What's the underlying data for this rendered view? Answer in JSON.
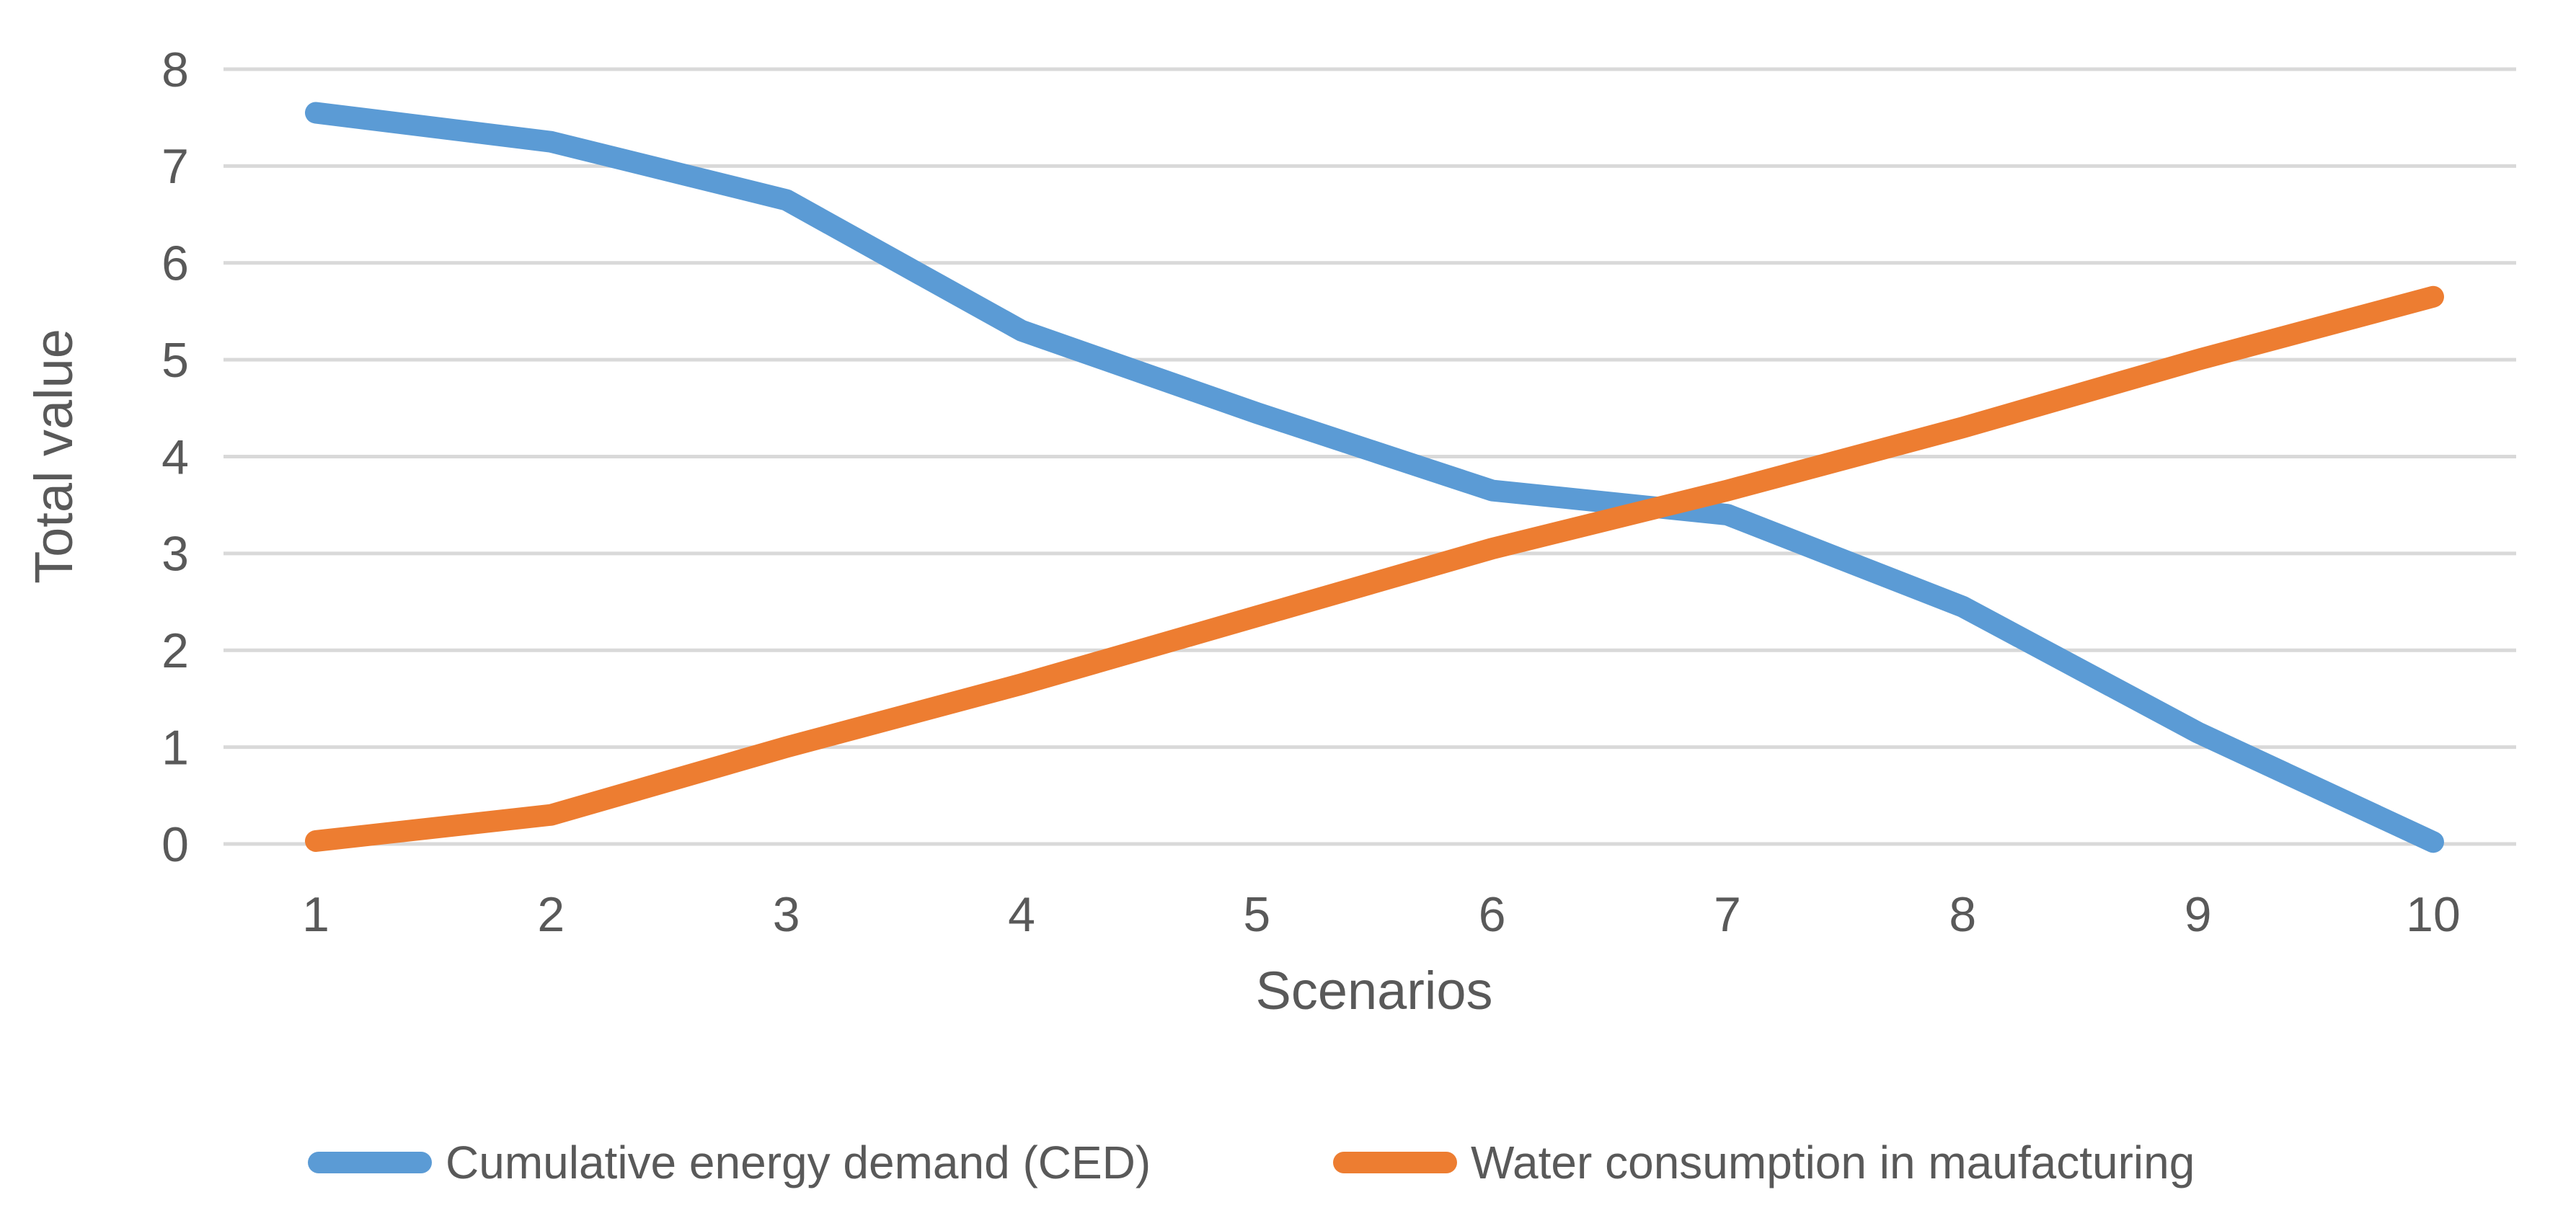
{
  "chart_data": {
    "type": "line",
    "title": "",
    "xlabel": "Scenarios",
    "ylabel": "Total value",
    "categories": [
      "1",
      "2",
      "3",
      "4",
      "5",
      "6",
      "7",
      "8",
      "9",
      "10"
    ],
    "x": [
      1,
      2,
      3,
      4,
      5,
      6,
      7,
      8,
      9,
      10
    ],
    "series": [
      {
        "name": "Cumulative energy demand (CED)",
        "color": "#5B9BD5",
        "values": [
          7.55,
          7.25,
          6.65,
          5.3,
          4.45,
          3.65,
          3.4,
          2.45,
          1.15,
          0.02
        ]
      },
      {
        "name": "Water consumption in maufacturing",
        "color": "#ED7D31",
        "values": [
          0.03,
          0.3,
          1.0,
          1.65,
          2.35,
          3.05,
          3.65,
          4.3,
          5.0,
          5.65
        ]
      }
    ],
    "ylim": [
      0,
      8
    ],
    "ytick_step": 1,
    "yticks": [
      "0",
      "1",
      "2",
      "3",
      "4",
      "5",
      "6",
      "7",
      "8"
    ],
    "grid": "horizontal-only",
    "gridline_color": "#D9D9D9",
    "text_color": "#595959",
    "background": "#FFFFFF",
    "legend_position": "bottom"
  }
}
